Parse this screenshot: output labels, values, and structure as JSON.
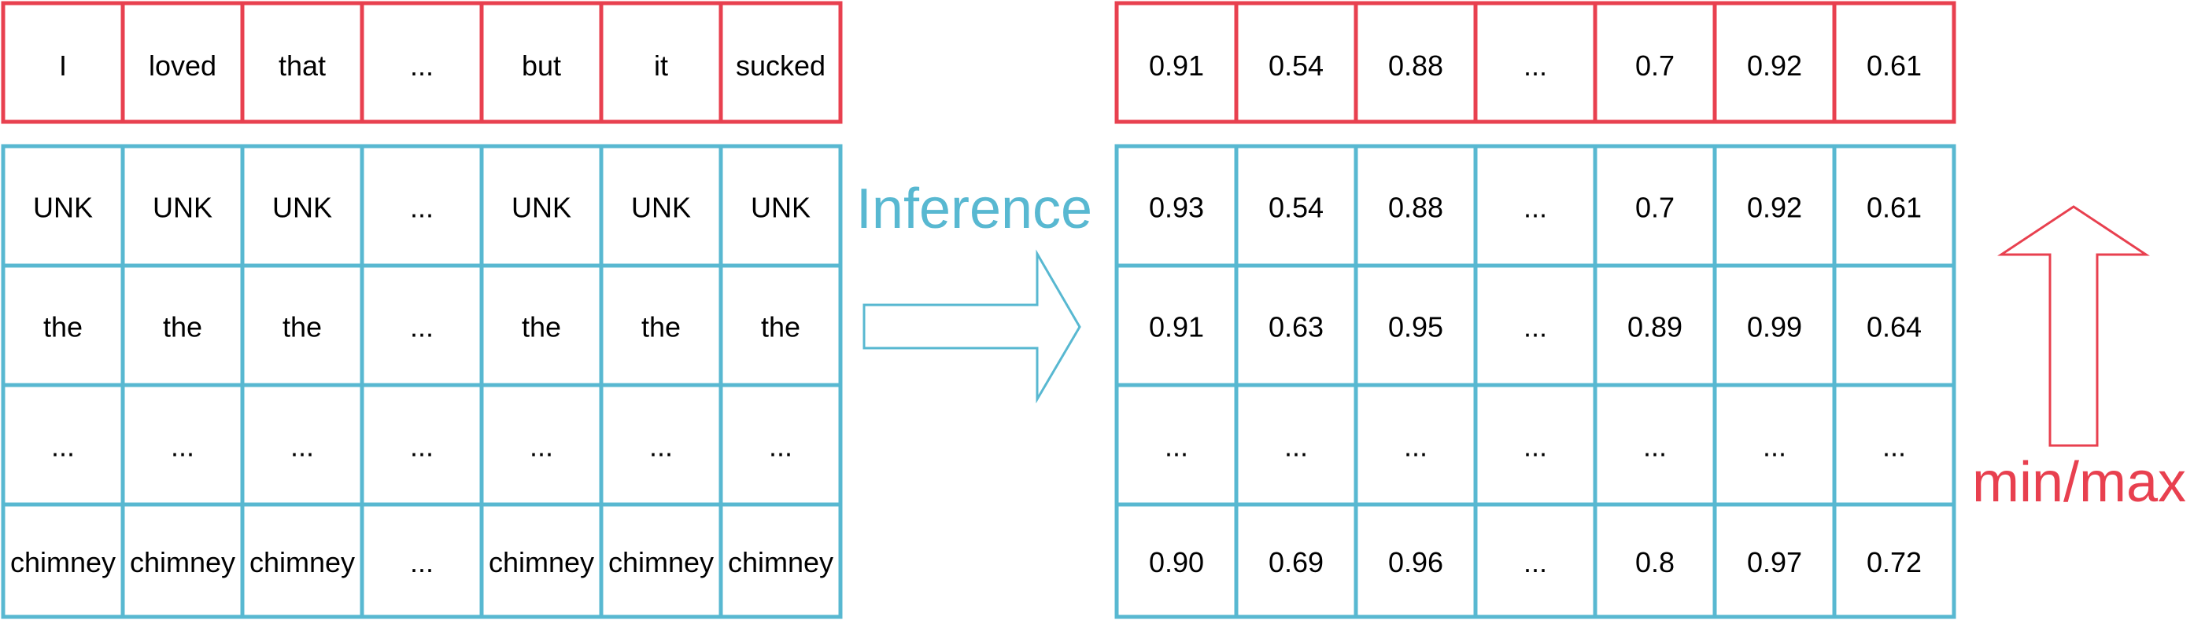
{
  "colors": {
    "red": "#e8404f",
    "blue": "#58b8d1",
    "text": "#000000"
  },
  "left_grid": {
    "top_row": [
      "I",
      "loved",
      "that",
      "...",
      "but",
      "it",
      "sucked"
    ],
    "rows": [
      [
        "UNK",
        "UNK",
        "UNK",
        "...",
        "UNK",
        "UNK",
        "UNK"
      ],
      [
        "the",
        "the",
        "the",
        "...",
        "the",
        "the",
        "the"
      ],
      [
        "...",
        "...",
        "...",
        "...",
        "...",
        "...",
        "..."
      ],
      [
        "chimney",
        "chimney",
        "chimney",
        "...",
        "chimney",
        "chimney",
        "chimney"
      ]
    ]
  },
  "right_grid": {
    "top_row": [
      "0.91",
      "0.54",
      "0.88",
      "...",
      "0.7",
      "0.92",
      "0.61"
    ],
    "rows": [
      [
        "0.93",
        "0.54",
        "0.88",
        "...",
        "0.7",
        "0.92",
        "0.61"
      ],
      [
        "0.91",
        "0.63",
        "0.95",
        "...",
        "0.89",
        "0.99",
        "0.64"
      ],
      [
        "...",
        "...",
        "...",
        "...",
        "...",
        "...",
        "..."
      ],
      [
        "0.90",
        "0.69",
        "0.96",
        "...",
        "0.8",
        "0.97",
        "0.72"
      ]
    ]
  },
  "labels": {
    "inference": "Inference",
    "minmax": "min/max"
  }
}
